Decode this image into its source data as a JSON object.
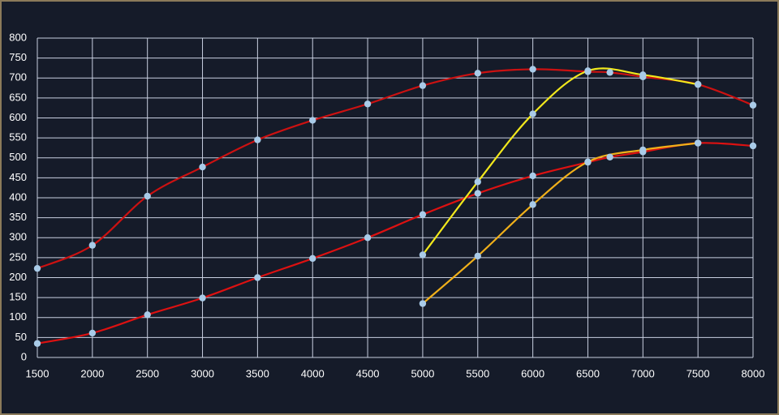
{
  "chart_data": {
    "type": "line",
    "xlim": [
      1500,
      8000
    ],
    "xticks": [
      1500,
      2000,
      2500,
      3000,
      3500,
      4000,
      4500,
      5000,
      5500,
      6000,
      6500,
      7000,
      7500,
      8000
    ],
    "ylim": [
      0,
      800
    ],
    "yticks": [
      0,
      50,
      100,
      150,
      200,
      250,
      300,
      350,
      400,
      450,
      500,
      550,
      600,
      650,
      700,
      750,
      800
    ],
    "grid": true,
    "marker_color": "#a9cbe8",
    "series": [
      {
        "color": "#cc1111",
        "x": [
          1500,
          2000,
          2500,
          3000,
          3500,
          4000,
          4500,
          5000,
          5500,
          6000,
          6500,
          6700,
          7000,
          7500,
          8000
        ],
        "values": [
          223,
          281,
          404,
          477,
          545,
          594,
          635,
          681,
          712,
          722,
          716,
          714,
          703,
          684,
          632
        ]
      },
      {
        "color": "#dd1111",
        "x": [
          1500,
          2000,
          2500,
          3000,
          3500,
          4000,
          4500,
          5000,
          5500,
          6000,
          6500,
          6700,
          7000,
          7500,
          8000
        ],
        "values": [
          35,
          61,
          107,
          149,
          200,
          248,
          300,
          358,
          411,
          455,
          489,
          502,
          515,
          537,
          530
        ]
      },
      {
        "color": "#f2e81c",
        "x": [
          5000,
          5500,
          6000,
          6500,
          7000,
          7500
        ],
        "values": [
          257,
          440,
          610,
          718,
          708,
          684
        ]
      },
      {
        "color": "#f0b01a",
        "x": [
          5000,
          5500,
          6000,
          6500,
          7000,
          7500
        ],
        "values": [
          135,
          254,
          383,
          490,
          520,
          537
        ]
      }
    ]
  }
}
